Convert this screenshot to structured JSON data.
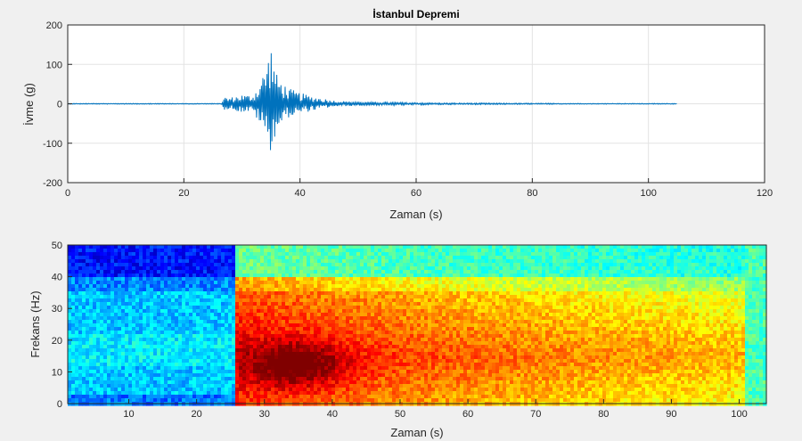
{
  "figure_background": "#f0f0f0",
  "chart_data": [
    {
      "type": "line",
      "title": "İstanbul Depremi",
      "xlabel": "Zaman (s)",
      "ylabel": "İvme (g)",
      "xlim": [
        0,
        120
      ],
      "ylim": [
        -200,
        200
      ],
      "xticks": [
        0,
        20,
        40,
        60,
        80,
        100,
        120
      ],
      "yticks": [
        -200,
        -100,
        0,
        100,
        200
      ],
      "grid": true,
      "line_color": "#0072bd",
      "series": [
        {
          "x": [
            0,
            26.5,
            27,
            28,
            29,
            30,
            31,
            32,
            33,
            34,
            34.5,
            35,
            35.5,
            36,
            37,
            38,
            40,
            42,
            44,
            46,
            50,
            55,
            60,
            65,
            70,
            80,
            90,
            100,
            105
          ],
          "envelope_upper": [
            1,
            1,
            18,
            16,
            20,
            24,
            22,
            25,
            55,
            90,
            120,
            155,
            110,
            75,
            55,
            40,
            28,
            20,
            14,
            8,
            5,
            4,
            3,
            2,
            2,
            1.5,
            1,
            1,
            1
          ],
          "envelope_lower": [
            -1,
            -1,
            -15,
            -14,
            -18,
            -22,
            -20,
            -24,
            -50,
            -80,
            -110,
            -120,
            -95,
            -70,
            -50,
            -35,
            -26,
            -18,
            -12,
            -7,
            -5,
            -4,
            -3,
            -2,
            -2,
            -1.5,
            -1,
            -1,
            -1
          ]
        }
      ]
    },
    {
      "type": "heatmap",
      "title": "",
      "xlabel": "Zaman (s)",
      "ylabel": "Frekans (Hz)",
      "xlim": [
        1,
        104
      ],
      "ylim": [
        0,
        50
      ],
      "xticks": [
        10,
        20,
        30,
        40,
        50,
        60,
        70,
        80,
        90,
        100
      ],
      "yticks": [
        0,
        10,
        20,
        30,
        40,
        50
      ],
      "colormap": "jet",
      "event_onset_s": 25.5,
      "peak_region": {
        "time_s": 35,
        "frequency_hz": 12
      }
    }
  ]
}
